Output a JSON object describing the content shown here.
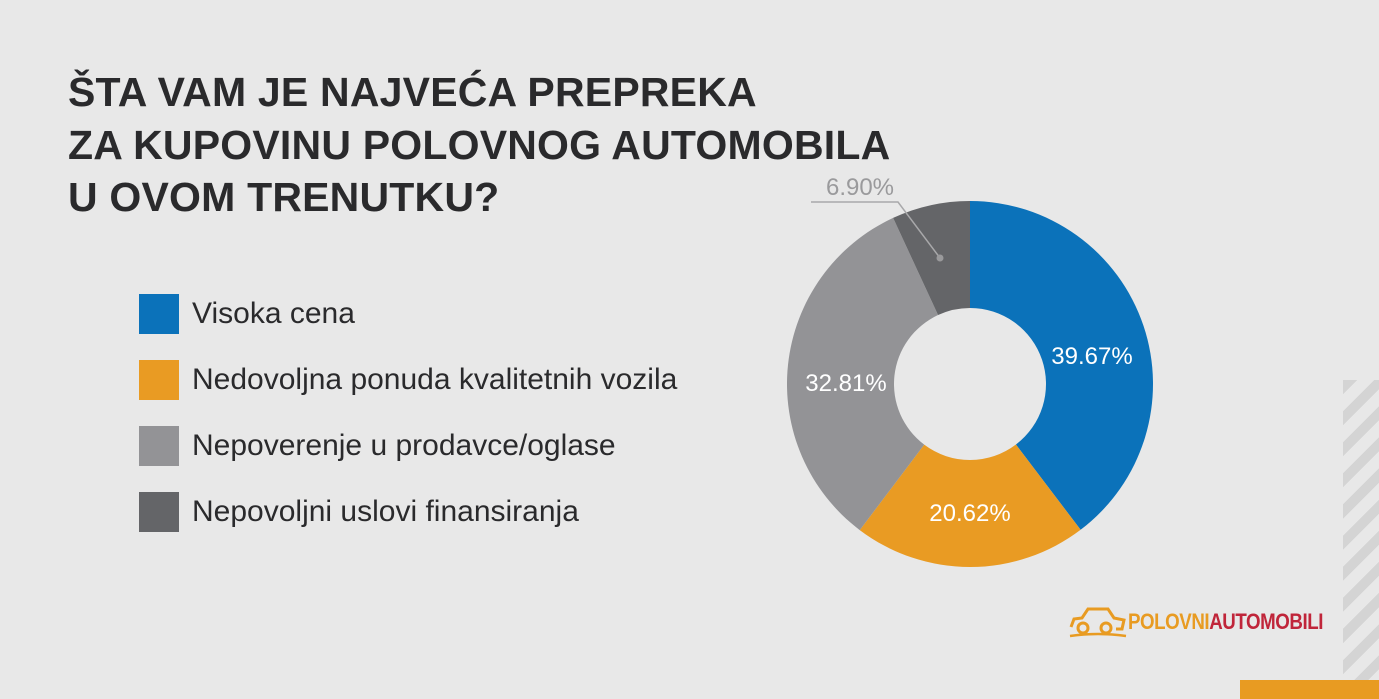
{
  "title_lines": [
    "ŠTA VAM JE NAJVEĆA PREPREKA",
    "ZA KUPOVINU POLOVNOG AUTOMOBILA",
    "U OVOM TRENUTKU?"
  ],
  "logo": {
    "part1": "POLOVNI",
    "part2": "AUTOMOBILI",
    "color1": "#e89b22",
    "color2": "#c0253a"
  },
  "chart_data": {
    "type": "pie",
    "donut": true,
    "start": "12 o'clock, clockwise",
    "legend_placement": "left",
    "categories": [
      "Visoka cena",
      "Nedovoljna ponuda kvalitetnih vozila",
      "Nepoverenje u prodavce/oglase",
      "Nepovoljni uslovi finansiranja"
    ],
    "values": [
      39.67,
      20.62,
      32.81,
      6.9
    ],
    "labels": [
      "39.67%",
      "20.62%",
      "32.81%",
      "6.90%"
    ],
    "colors": [
      "#0b72ba",
      "#e99b23",
      "#939396",
      "#646568"
    ]
  }
}
